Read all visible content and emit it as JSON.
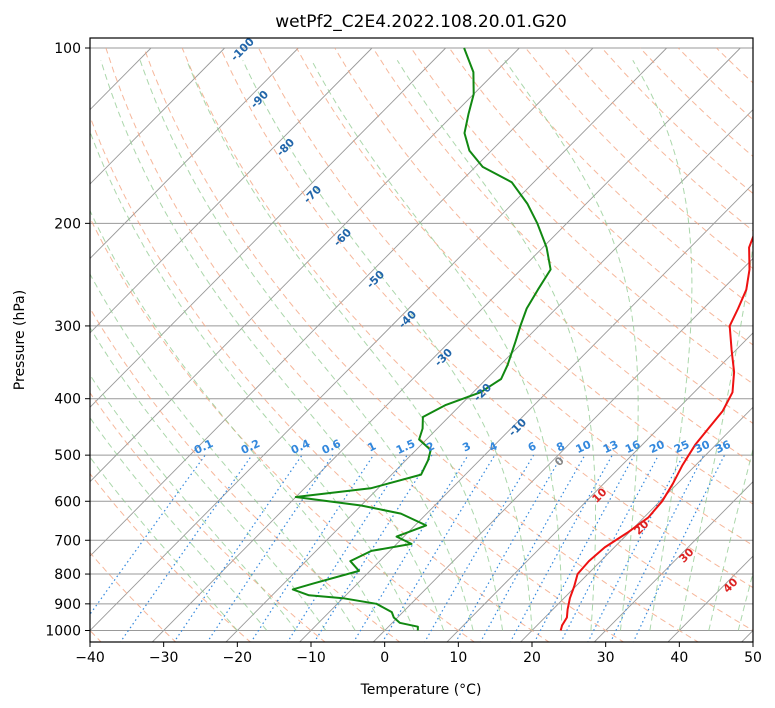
{
  "chart_data": {
    "type": "skew-t",
    "title": "wetPf2_C2E4.2022.108.20.01.G20",
    "xlabel": "Temperature (°C)",
    "ylabel": "Pressure (hPa)",
    "xlim": [
      -40,
      50
    ],
    "ylim": [
      1050,
      100
    ],
    "x_ticks": [
      -40,
      -30,
      -20,
      -10,
      0,
      10,
      20,
      30,
      40,
      50
    ],
    "y_ticks": [
      100,
      200,
      300,
      400,
      500,
      600,
      700,
      800,
      900,
      1000
    ],
    "colors": {
      "temperature": "#ee1111",
      "dewpoint": "#118811",
      "isotherm": "#999999",
      "dry_adiabat": "#f4a582",
      "moist_adiabat": "#8fc98f",
      "mixing_ratio": "#3388dd",
      "dry_label": "#2266aa",
      "moist_label": "#dd2222"
    },
    "series": [
      {
        "name": "Temperature",
        "points": [
          [
            1000,
            23.9
          ],
          [
            980,
            23.4
          ],
          [
            950,
            23.0
          ],
          [
            920,
            22.0
          ],
          [
            880,
            20.8
          ],
          [
            840,
            19.8
          ],
          [
            800,
            18.6
          ],
          [
            760,
            18.4
          ],
          [
            720,
            18.7
          ],
          [
            680,
            19.8
          ],
          [
            640,
            20.6
          ],
          [
            600,
            20.3
          ],
          [
            560,
            19.4
          ],
          [
            520,
            18.2
          ],
          [
            480,
            17.2
          ],
          [
            450,
            16.8
          ],
          [
            420,
            16.4
          ],
          [
            390,
            15.2
          ],
          [
            360,
            12.7
          ],
          [
            330,
            9.4
          ],
          [
            300,
            5.9
          ],
          [
            280,
            4.7
          ],
          [
            260,
            3.3
          ],
          [
            240,
            1.0
          ],
          [
            220,
            -2.0
          ],
          [
            200,
            -4.0
          ],
          [
            180,
            -3.5
          ],
          [
            165,
            -2.0
          ],
          [
            150,
            -0.2
          ],
          [
            140,
            0.8
          ],
          [
            130,
            0.9
          ],
          [
            120,
            0.9
          ],
          [
            112,
            1.4
          ],
          [
            105,
            2.0
          ],
          [
            100,
            2.1
          ]
        ]
      },
      {
        "name": "Dewpoint",
        "points": [
          [
            1000,
            4.5
          ],
          [
            985,
            4.0
          ],
          [
            970,
            1.0
          ],
          [
            950,
            -0.5
          ],
          [
            930,
            -1.5
          ],
          [
            900,
            -4.7
          ],
          [
            880,
            -10.0
          ],
          [
            870,
            -15.0
          ],
          [
            850,
            -18.0
          ],
          [
            830,
            -16.0
          ],
          [
            790,
            -11.5
          ],
          [
            760,
            -14.0
          ],
          [
            730,
            -12.5
          ],
          [
            710,
            -8.0
          ],
          [
            690,
            -11.0
          ],
          [
            660,
            -8.5
          ],
          [
            630,
            -13.5
          ],
          [
            610,
            -20.0
          ],
          [
            590,
            -30.0
          ],
          [
            570,
            -21.0
          ],
          [
            540,
            -16.0
          ],
          [
            510,
            -17.0
          ],
          [
            490,
            -18.0
          ],
          [
            470,
            -21.0
          ],
          [
            450,
            -22.0
          ],
          [
            430,
            -23.5
          ],
          [
            410,
            -22.0
          ],
          [
            390,
            -19.0
          ],
          [
            370,
            -18.0
          ],
          [
            350,
            -19.0
          ],
          [
            320,
            -21.0
          ],
          [
            300,
            -22.5
          ],
          [
            280,
            -24.0
          ],
          [
            260,
            -25.0
          ],
          [
            240,
            -26.0
          ],
          [
            220,
            -29.5
          ],
          [
            200,
            -34.0
          ],
          [
            185,
            -38.0
          ],
          [
            170,
            -43.0
          ],
          [
            160,
            -49.0
          ],
          [
            150,
            -53.0
          ],
          [
            140,
            -56.0
          ],
          [
            130,
            -58.0
          ],
          [
            120,
            -60.0
          ],
          [
            110,
            -63.0
          ],
          [
            100,
            -67.5
          ]
        ]
      }
    ],
    "annotations": {
      "dry_adiabat_labels": [
        "-100",
        "-90",
        "-80",
        "-70",
        "-60",
        "-50",
        "-40",
        "-30",
        "-20",
        "-10",
        "0",
        "10",
        "20",
        "30",
        "40"
      ],
      "mixing_ratio_labels": [
        "0.1",
        "0.2",
        "0.4",
        "0.6",
        "1",
        "1.5",
        "2",
        "3",
        "4",
        "6",
        "8",
        "10",
        "13",
        "16",
        "20",
        "25",
        "30",
        "36"
      ]
    }
  }
}
